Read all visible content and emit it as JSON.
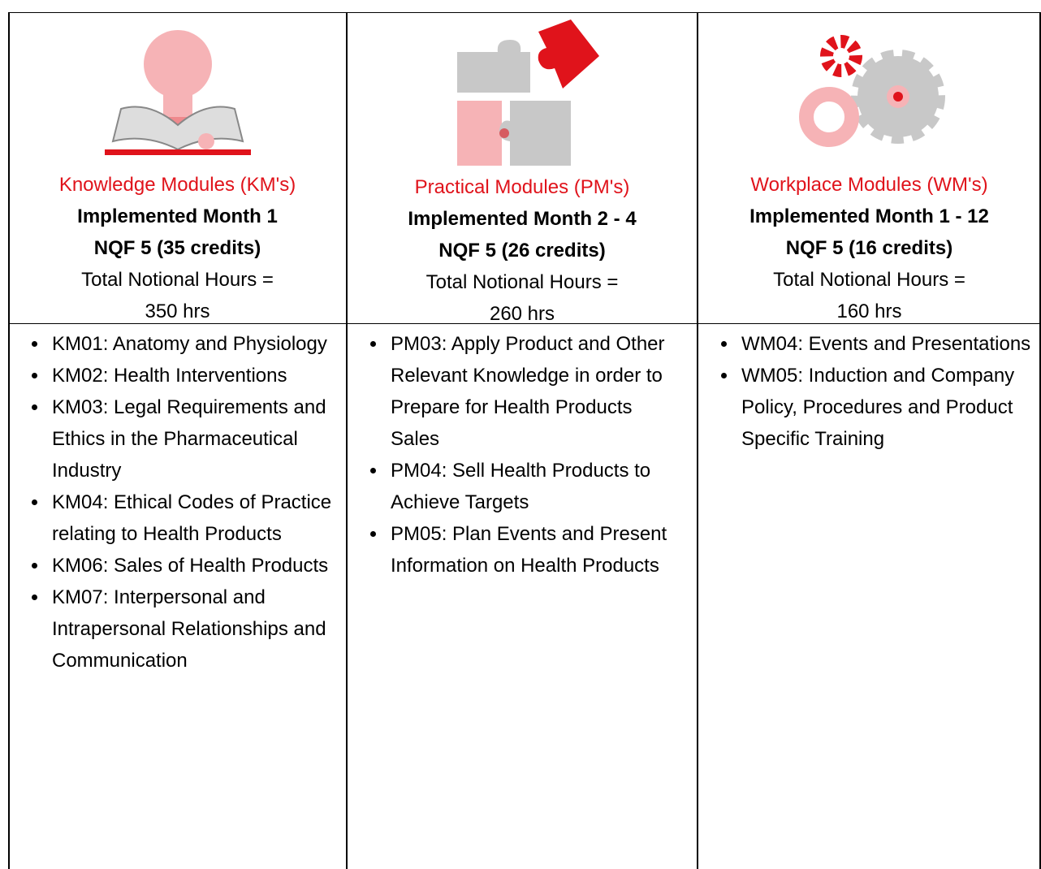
{
  "columns": [
    {
      "title": "Knowledge Modules (KM's)",
      "implemented": "Implemented Month 1",
      "nqf": "NQF 5 (35 credits)",
      "hours_label": "Total Notional Hours =",
      "hours": "350 hrs",
      "items": [
        "KM01: Anatomy and Physiology",
        "KM02: Health Interventions",
        "KM03: Legal Requirements and Ethics in the Pharmaceutical Industry",
        "KM04: Ethical Codes of Practice relating to Health Products",
        "KM06: Sales of Health Products",
        "KM07: Interpersonal and Intrapersonal Relationships and Communication"
      ]
    },
    {
      "title": "Practical Modules (PM's)",
      "implemented": "Implemented Month 2 - 4",
      "nqf": "NQF 5 (26 credits)",
      "hours_label": "Total Notional Hours =",
      "hours": "260 hrs",
      "items": [
        "PM03: Apply Product and Other Relevant Knowledge in order to Prepare for Health Products Sales",
        "PM04: Sell Health Products to Achieve Targets",
        "PM05: Plan Events and Present Information on Health Products"
      ]
    },
    {
      "title": "Workplace Modules (WM's)",
      "implemented": "Implemented Month 1 - 12",
      "nqf": "NQF 5 (16 credits)",
      "hours_label": "Total Notional Hours =",
      "hours": "160 hrs",
      "items": [
        "WM04: Events and Presentations",
        "WM05: Induction and Company Policy, Procedures and Product Specific Training"
      ]
    }
  ]
}
